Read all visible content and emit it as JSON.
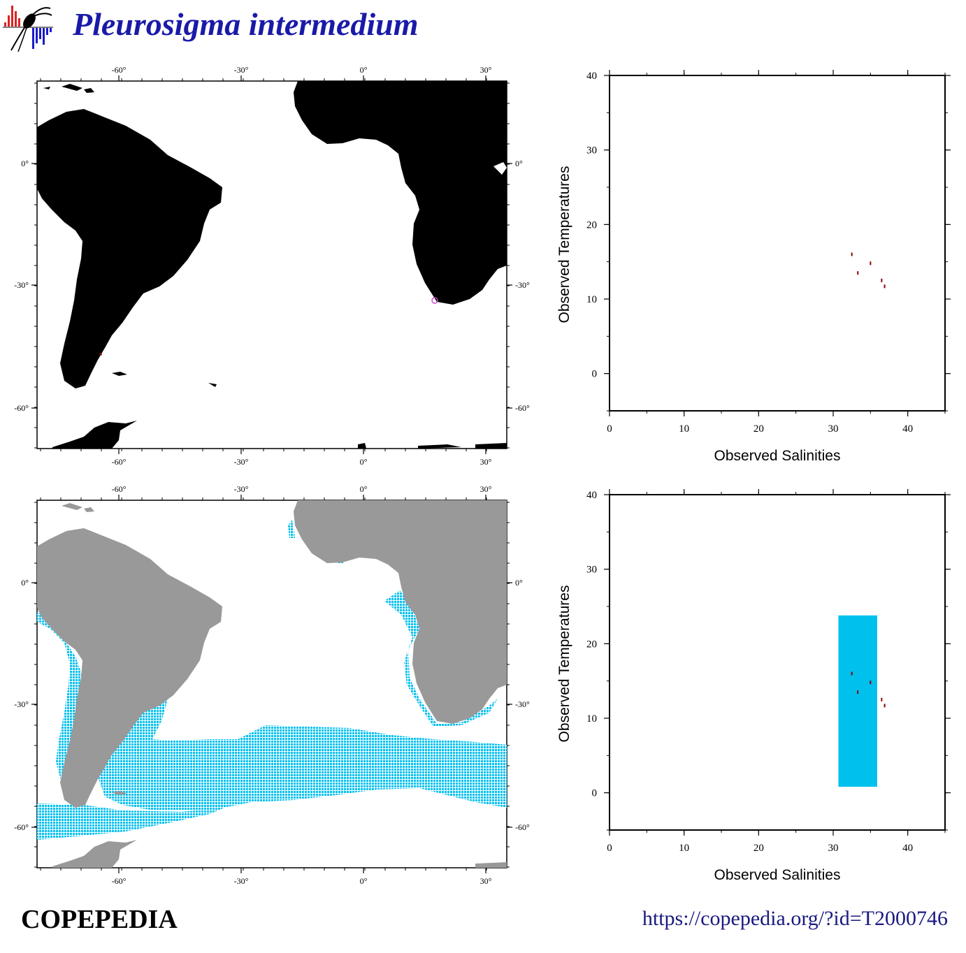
{
  "header": {
    "title": "Pleurosigma intermedium"
  },
  "footer": {
    "brand": "COPEPEDIA",
    "url": "https://copepedia.org/?id=T2000746"
  },
  "colors": {
    "title": "#1a1aa8",
    "land_map1": "#000000",
    "land_map2": "#999999",
    "habitat": "#00c0ee",
    "observation": "#8b0000",
    "observation_circle": "#cc44cc",
    "logo_red": "#dd2222",
    "logo_blue": "#1a1acc"
  },
  "maps": {
    "lon_ticks": [
      "-60°",
      "-30°",
      "0°",
      "30°"
    ],
    "lat_ticks": [
      "0°",
      "-30°",
      "-60°"
    ]
  },
  "chart_data": [
    {
      "type": "scatter",
      "title": "",
      "xlabel": "Observed Salinities",
      "ylabel": "Observed Temperatures",
      "xlim": [
        0,
        45
      ],
      "ylim": [
        -5,
        40
      ],
      "xticks": [
        "0",
        "10",
        "20",
        "30",
        "40"
      ],
      "yticks": [
        "0",
        "10",
        "20",
        "30",
        "40"
      ],
      "points": [
        {
          "x": 32.5,
          "y": 16.0
        },
        {
          "x": 33.3,
          "y": 13.5
        },
        {
          "x": 35.0,
          "y": 14.8
        },
        {
          "x": 36.5,
          "y": 12.5
        },
        {
          "x": 36.9,
          "y": 11.7
        }
      ]
    },
    {
      "type": "scatter",
      "title": "",
      "xlabel": "Observed Salinities",
      "ylabel": "Observed Temperatures",
      "xlim": [
        0,
        45
      ],
      "ylim": [
        -5,
        40
      ],
      "xticks": [
        "0",
        "10",
        "20",
        "30",
        "40"
      ],
      "yticks": [
        "0",
        "10",
        "20",
        "30",
        "40"
      ],
      "range_box": {
        "x0": 30.7,
        "x1": 35.9,
        "y0": 0.8,
        "y1": 23.8
      },
      "points": [
        {
          "x": 32.5,
          "y": 16.0
        },
        {
          "x": 33.3,
          "y": 13.5
        },
        {
          "x": 35.0,
          "y": 14.8
        },
        {
          "x": 36.5,
          "y": 12.5
        },
        {
          "x": 36.9,
          "y": 11.7
        }
      ]
    }
  ]
}
